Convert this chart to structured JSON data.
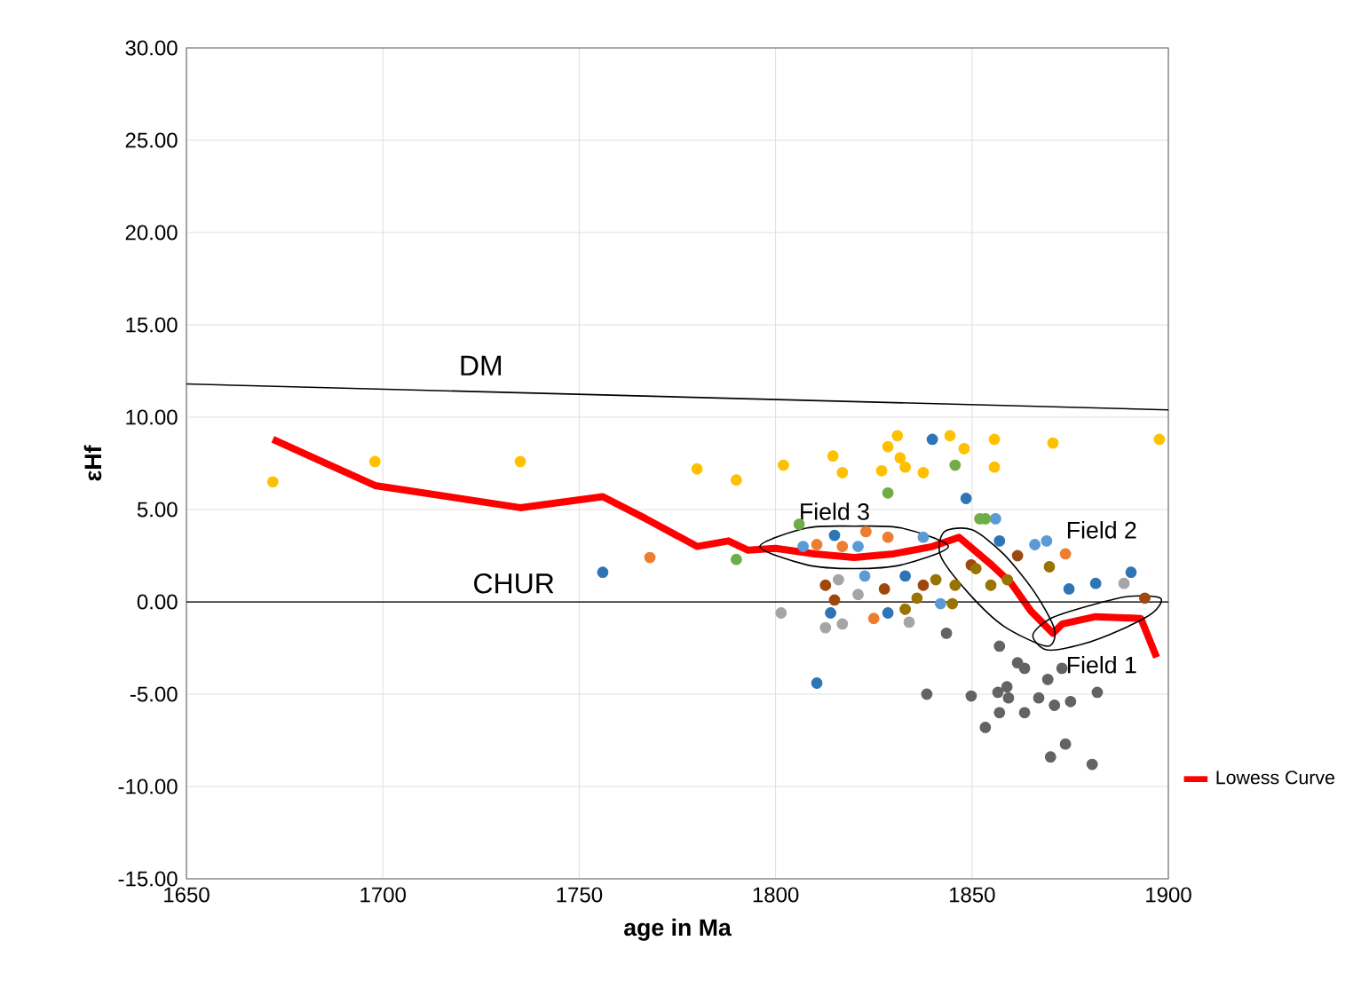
{
  "chart_data": {
    "type": "scatter",
    "xlabel": "age in Ma",
    "ylabel": "εHf",
    "xlim": [
      1650,
      1900
    ],
    "ylim": [
      -15,
      30
    ],
    "xticks": [
      1650,
      1700,
      1750,
      1800,
      1850,
      1900
    ],
    "yticks": [
      {
        "value": -15,
        "label": "-15.00"
      },
      {
        "value": -10,
        "label": "-10.00"
      },
      {
        "value": -5,
        "label": "-5.00"
      },
      {
        "value": 0,
        "label": "0.00"
      },
      {
        "value": 5,
        "label": "5.00"
      },
      {
        "value": 10,
        "label": "10.00"
      },
      {
        "value": 15,
        "label": "15.00"
      },
      {
        "value": 20,
        "label": "20.00"
      },
      {
        "value": 25,
        "label": "25.00"
      },
      {
        "value": 30,
        "label": "30.00"
      }
    ],
    "grid": true,
    "marker": "circle",
    "legend": "right",
    "ref_lines": [
      {
        "axis": "y",
        "value": 0,
        "label": "CHUR",
        "color": "#000000"
      }
    ],
    "annotations": [
      "DM",
      "Field 3",
      "Field 2",
      "Field 1"
    ],
    "series": [
      {
        "color": "#ffc000",
        "x": [
          1672,
          1698,
          1735,
          1780,
          1790,
          1802,
          1814.6,
          1817,
          1828.6,
          1831,
          1827,
          1831.7,
          1833,
          1837.6,
          1844.4,
          1848,
          1855.7,
          1855.7,
          1870.6,
          1897.7
        ],
        "values": [
          6.5,
          7.6,
          7.6,
          7.2,
          6.6,
          7.4,
          7.9,
          7.0,
          8.4,
          9.0,
          7.1,
          7.8,
          7.3,
          7.0,
          9.0,
          8.3,
          8.8,
          7.3,
          8.6,
          8.8
        ]
      },
      {
        "color": "#2e75b6",
        "x": [
          1756,
          1839.9,
          1848.5,
          1810.5,
          1874.7,
          1881.5,
          1890.5,
          1857,
          1815,
          1814,
          1828.6,
          1833
        ],
        "values": [
          1.6,
          8.8,
          5.6,
          -4.4,
          0.7,
          1.0,
          1.6,
          3.3,
          3.6,
          -0.6,
          -0.6,
          1.4
        ]
      },
      {
        "color": "#5b9bd5",
        "x": [
          1822.7,
          1821,
          1837.6,
          1866,
          1869,
          1856,
          1807,
          1842
        ],
        "values": [
          1.4,
          3.0,
          3.5,
          3.1,
          3.3,
          4.5,
          3.0,
          -0.1
        ]
      },
      {
        "color": "#ed7d31",
        "x": [
          1768,
          1823,
          1828.6,
          1810.5,
          1817,
          1825,
          1873.8
        ],
        "values": [
          2.4,
          3.8,
          3.5,
          3.1,
          3.0,
          -0.9,
          2.6
        ]
      },
      {
        "color": "#9e480e",
        "x": [
          1812.7,
          1815,
          1827.7,
          1837.6,
          1861.6,
          1894,
          1849.8
        ],
        "values": [
          0.9,
          0.1,
          0.7,
          0.9,
          2.5,
          0.2,
          2.0
        ]
      },
      {
        "color": "#997300",
        "x": [
          1836,
          1833,
          1840.8,
          1845.7,
          1851,
          1854.8,
          1859,
          1869.7,
          1845
        ],
        "values": [
          0.2,
          -0.4,
          1.2,
          0.9,
          1.8,
          0.9,
          1.2,
          1.9,
          -0.1
        ]
      },
      {
        "color": "#70ad47",
        "x": [
          1790,
          1806,
          1828.6,
          1845.7,
          1852,
          1853.4
        ],
        "values": [
          2.3,
          4.2,
          5.9,
          7.4,
          4.5,
          4.5
        ]
      },
      {
        "color": "#a5a5a5",
        "x": [
          1801.4,
          1812.7,
          1817,
          1816,
          1821,
          1834,
          1888.7
        ],
        "values": [
          -0.6,
          -1.4,
          -1.2,
          1.2,
          0.4,
          -1.1,
          1.0
        ]
      },
      {
        "color": "#636363",
        "x": [
          1843.5,
          1857,
          1861.6,
          1863.4,
          1872.9,
          1869.3,
          1858.9,
          1856.6,
          1849.8,
          1838.5,
          1859.3,
          1867,
          1875.1,
          1881.9,
          1857,
          1863.4,
          1871,
          1853.4,
          1873.8,
          1870,
          1880.6
        ],
        "values": [
          -1.7,
          -2.4,
          -3.3,
          -3.6,
          -3.6,
          -4.2,
          -4.6,
          -4.9,
          -5.1,
          -5.0,
          -5.2,
          -5.2,
          -5.4,
          -4.9,
          -6.0,
          -6.0,
          -5.6,
          -6.8,
          -7.7,
          -8.4,
          -8.8
        ]
      },
      {
        "type": "line",
        "marker": "none",
        "color": "#000000",
        "x": [
          1650,
          1900
        ],
        "values": [
          11.8,
          10.4
        ]
      },
      {
        "type": "line",
        "marker": "none",
        "name": "Lowess Curve",
        "color": "#ff0000",
        "x": [
          1672,
          1698,
          1735,
          1756,
          1767,
          1780,
          1788,
          1793,
          1800,
          1810,
          1820,
          1830,
          1840,
          1846.7,
          1855,
          1860,
          1865,
          1870.6,
          1873,
          1881.5,
          1893,
          1897
        ],
        "values": [
          8.8,
          6.3,
          5.1,
          5.7,
          4.5,
          3.0,
          3.3,
          2.8,
          2.9,
          2.6,
          2.4,
          2.6,
          3.0,
          3.5,
          2.0,
          1.0,
          -0.5,
          -1.7,
          -1.2,
          -0.8,
          -0.9,
          -3.0
        ]
      }
    ]
  }
}
